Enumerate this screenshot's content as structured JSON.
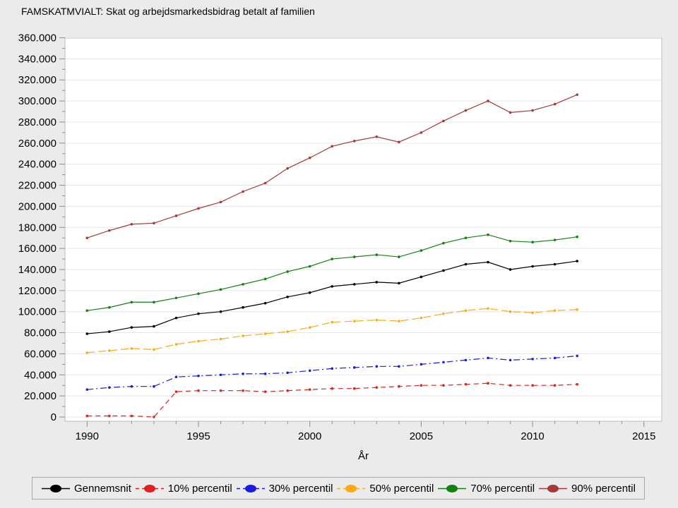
{
  "chart_data": {
    "type": "line",
    "title": "FAMSKATMVIALT: Skat og arbejdsmarkedsbidrag betalt af familien",
    "xlabel": "År",
    "ylabel": "",
    "ylim": [
      0,
      360000
    ],
    "ytick_step": 20000,
    "xlim": [
      1989,
      2016
    ],
    "xticks_major": [
      1990,
      1995,
      2000,
      2005,
      2010,
      2015
    ],
    "grid": "horizontal-only",
    "legend_position": "bottom",
    "x": [
      1990,
      1991,
      1992,
      1993,
      1994,
      1995,
      1996,
      1997,
      1998,
      1999,
      2000,
      2001,
      2002,
      2003,
      2004,
      2005,
      2006,
      2007,
      2008,
      2009,
      2010,
      2011,
      2012
    ],
    "series": [
      {
        "name": "Gennemsnit",
        "color": "#000000",
        "dash": "solid",
        "values": [
          79000,
          81000,
          85000,
          86000,
          94000,
          98000,
          100000,
          104000,
          108000,
          114000,
          118000,
          124000,
          126000,
          128000,
          127000,
          133000,
          139000,
          145000,
          147000,
          140000,
          143000,
          145000,
          148000
        ]
      },
      {
        "name": "10% percentil",
        "color": "#e01f1f",
        "dash": "dashed",
        "values": [
          1000,
          1000,
          1000,
          0,
          24000,
          25000,
          25000,
          25000,
          24000,
          25000,
          26000,
          27000,
          27000,
          28000,
          29000,
          30000,
          30000,
          31000,
          32000,
          30000,
          30000,
          30000,
          31000
        ]
      },
      {
        "name": "30% percentil",
        "color": "#1b1be0",
        "dash": "dashdot",
        "values": [
          26000,
          28000,
          29000,
          29000,
          38000,
          39000,
          40000,
          41000,
          41000,
          42000,
          44000,
          46000,
          47000,
          48000,
          48000,
          50000,
          52000,
          54000,
          56000,
          54000,
          55000,
          56000,
          58000
        ]
      },
      {
        "name": "50% percentil",
        "color": "#ffa817",
        "dash": "longdash",
        "values": [
          61000,
          63000,
          65000,
          64000,
          69000,
          72000,
          74000,
          77000,
          79000,
          81000,
          85000,
          90000,
          91000,
          92000,
          91000,
          94000,
          98000,
          101000,
          103000,
          100000,
          99000,
          101000,
          102000
        ]
      },
      {
        "name": "70% percentil",
        "color": "#128012",
        "dash": "solid",
        "values": [
          101000,
          104000,
          109000,
          109000,
          113000,
          117000,
          121000,
          126000,
          131000,
          138000,
          143000,
          150000,
          152000,
          154000,
          152000,
          158000,
          165000,
          170000,
          173000,
          167000,
          166000,
          168000,
          171000
        ]
      },
      {
        "name": "90% percentil",
        "color": "#a33a3a",
        "dash": "solid",
        "values": [
          170000,
          177000,
          183000,
          184000,
          191000,
          198000,
          204000,
          214000,
          222000,
          236000,
          246000,
          257000,
          262000,
          266000,
          261000,
          270000,
          281000,
          291000,
          300000,
          289000,
          291000,
          297000,
          306000
        ]
      }
    ]
  },
  "axes": {
    "y_tick_labels": [
      "0",
      "20.000",
      "40.000",
      "60.000",
      "80.000",
      "100.000",
      "120.000",
      "140.000",
      "160.000",
      "180.000",
      "200.000",
      "220.000",
      "240.000",
      "260.000",
      "280.000",
      "300.000",
      "320.000",
      "340.000",
      "360.000"
    ],
    "x_tick_labels": [
      "1990",
      "1995",
      "2000",
      "2005",
      "2010",
      "2015"
    ],
    "x_axis_title": "År"
  },
  "legend": {
    "items": [
      "Gennemsnit",
      "10% percentil",
      "30% percentil",
      "50% percentil",
      "70% percentil",
      "90% percentil"
    ]
  },
  "colors": {
    "background": "#ebebeb",
    "plot_background": "#ffffff",
    "grid": "#e6e6e6",
    "axis_border": "#bdbdbd",
    "tick": "#8c8c8c",
    "text": "#000000"
  }
}
